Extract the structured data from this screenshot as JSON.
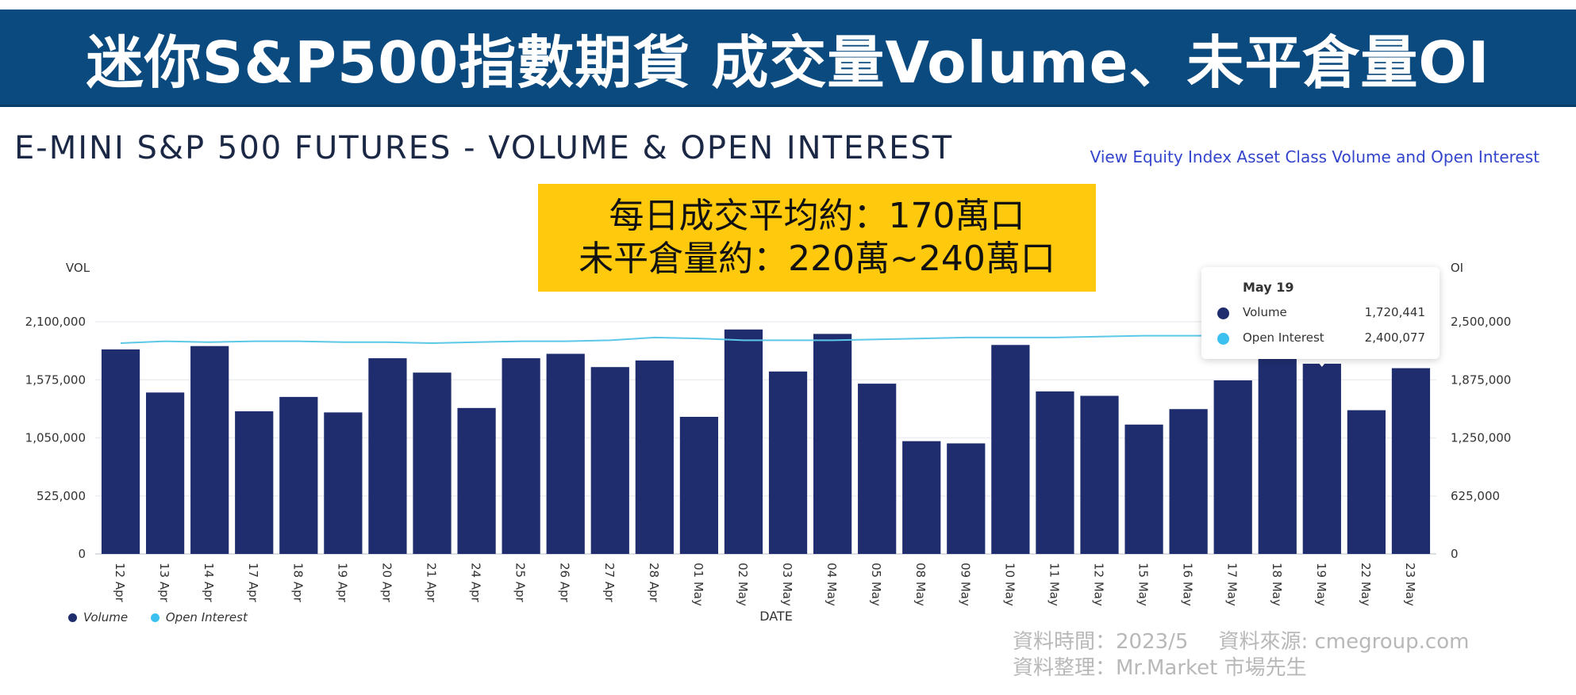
{
  "banner": {
    "title": "迷你S&P500指數期貨 成交量Volume、未平倉量OI"
  },
  "header": {
    "chart_title": "E-MINI S&P 500 FUTURES - VOLUME & OPEN INTEREST",
    "view_link": "View Equity Index Asset Class Volume and Open Interest"
  },
  "note": {
    "line1": "每日成交平均約：170萬口",
    "line2": "未平倉量約：220萬~240萬口"
  },
  "tooltip": {
    "date": "May 19",
    "rows": [
      {
        "label": "Volume",
        "value": "1,720,441",
        "color": "#1f2d6e"
      },
      {
        "label": "Open Interest",
        "value": "2,400,077",
        "color": "#3cc0f0"
      }
    ]
  },
  "legend": {
    "volume": "Volume",
    "oi": "Open Interest"
  },
  "source": {
    "time": "資料時間：2023/5",
    "from": "資料來源: cmegroup.com",
    "by": "資料整理：Mr.Market 市場先生"
  },
  "colors": {
    "bar": "#1f2d6e",
    "line": "#5cc8e8",
    "banner": "#0b4a7e",
    "note": "#ffc90e"
  },
  "chart_data": {
    "type": "bar",
    "xlabel": "DATE",
    "ylabel": "VOL",
    "y2label": "OI",
    "ylim": [
      0,
      2100000
    ],
    "y2lim": [
      0,
      2500000
    ],
    "y_ticks": [
      "2,100,000",
      "1,575,000",
      "1,050,000",
      "525,000",
      "0"
    ],
    "y2_ticks": [
      "2,500,000",
      "1,875,000",
      "1,250,000",
      "625,000",
      "0"
    ],
    "categories": [
      "12 Apr",
      "13 Apr",
      "14 Apr",
      "17 Apr",
      "18 Apr",
      "19 Apr",
      "20 Apr",
      "21 Apr",
      "24 Apr",
      "25 Apr",
      "26 Apr",
      "27 Apr",
      "28 Apr",
      "01 May",
      "02 May",
      "03 May",
      "04 May",
      "05 May",
      "08 May",
      "09 May",
      "10 May",
      "11 May",
      "12 May",
      "15 May",
      "16 May",
      "17 May",
      "18 May",
      "19 May",
      "22 May",
      "23 May"
    ],
    "series": [
      {
        "name": "Volume",
        "type": "bar",
        "values": [
          1850000,
          1460000,
          1880000,
          1290000,
          1420000,
          1280000,
          1770000,
          1640000,
          1320000,
          1770000,
          1810000,
          1690000,
          1750000,
          1240000,
          2030000,
          1650000,
          1990000,
          1540000,
          1020000,
          1000000,
          1890000,
          1470000,
          1430000,
          1170000,
          1310000,
          1570000,
          1790000,
          1720441,
          1300000,
          1680000
        ]
      },
      {
        "name": "Open Interest",
        "type": "line",
        "values": [
          2270000,
          2290000,
          2280000,
          2290000,
          2290000,
          2280000,
          2280000,
          2270000,
          2280000,
          2290000,
          2290000,
          2300000,
          2330000,
          2320000,
          2300000,
          2300000,
          2300000,
          2310000,
          2320000,
          2330000,
          2330000,
          2330000,
          2340000,
          2350000,
          2350000,
          2350000,
          2380000,
          2400077,
          2400000,
          2410000
        ]
      }
    ],
    "grid": true,
    "legend": "bottom-left"
  }
}
